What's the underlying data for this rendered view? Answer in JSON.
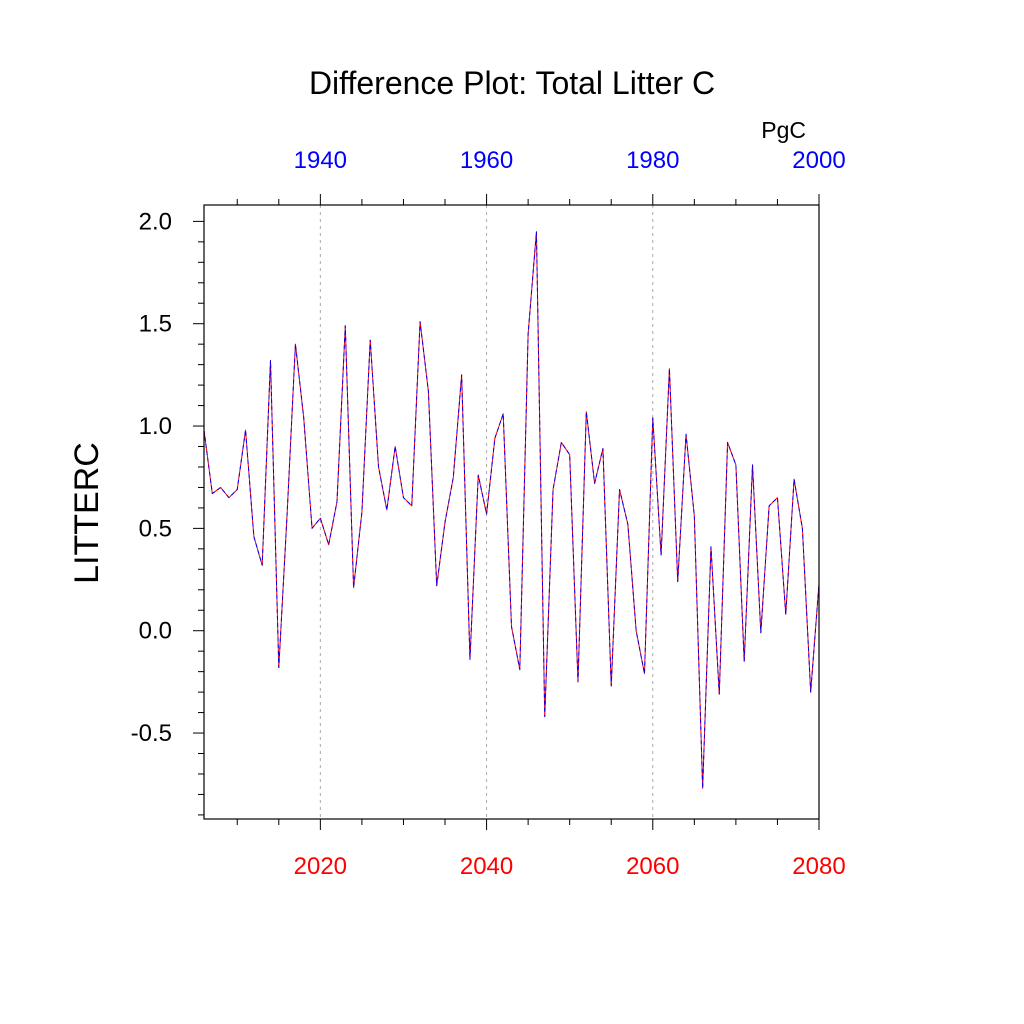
{
  "chart_data": {
    "type": "line",
    "title": "Difference Plot: Total Litter C",
    "units": "PgC",
    "ylabel": "LITTERC",
    "xlabel": "",
    "xlim": [
      2006,
      2080
    ],
    "ylim": [
      -0.92,
      2.08
    ],
    "grid": "vertical dashed lines at 2020, 2040, 2060",
    "colors": {
      "series_a": "#ff0000",
      "series_b": "#0000ff",
      "bottom_axis_text": "#ff0000",
      "top_axis_text": "#0000ff",
      "frame": "#000000"
    },
    "bottom_axis": {
      "ticks": [
        2020,
        2040,
        2060,
        2080
      ],
      "tick_labels": [
        "2020",
        "2040",
        "2060",
        "2080"
      ]
    },
    "top_axis": {
      "ticks": [
        1940,
        1960,
        1980,
        2000
      ],
      "tick_labels": [
        "1940",
        "1960",
        "1980",
        "2000"
      ],
      "offset_years": -80
    },
    "y_axis": {
      "ticks": [
        -0.5,
        0.0,
        0.5,
        1.0,
        1.5,
        2.0
      ],
      "tick_labels": [
        "-0.5",
        "0.0",
        "0.5",
        "1.0",
        "1.5",
        "2.0"
      ]
    },
    "x": [
      2006,
      2007,
      2008,
      2009,
      2010,
      2011,
      2012,
      2013,
      2014,
      2015,
      2016,
      2017,
      2018,
      2019,
      2020,
      2021,
      2022,
      2023,
      2024,
      2025,
      2026,
      2027,
      2028,
      2029,
      2030,
      2031,
      2032,
      2033,
      2034,
      2035,
      2036,
      2037,
      2038,
      2039,
      2040,
      2041,
      2042,
      2043,
      2044,
      2045,
      2046,
      2047,
      2048,
      2049,
      2050,
      2051,
      2052,
      2053,
      2054,
      2055,
      2056,
      2057,
      2058,
      2059,
      2060,
      2061,
      2062,
      2063,
      2064,
      2065,
      2066,
      2067,
      2068,
      2069,
      2070,
      2071,
      2072,
      2073,
      2074,
      2075,
      2076,
      2077,
      2078,
      2079,
      2080
    ],
    "series": [
      {
        "values": [
          0.98,
          0.67,
          0.7,
          0.65,
          0.69,
          0.98,
          0.46,
          0.32,
          1.32,
          -0.18,
          0.57,
          1.4,
          1.04,
          0.5,
          0.55,
          0.42,
          0.63,
          1.49,
          0.21,
          0.58,
          1.42,
          0.8,
          0.59,
          0.9,
          0.65,
          0.61,
          1.51,
          1.17,
          0.22,
          0.53,
          0.75,
          1.25,
          -0.14,
          0.76,
          0.57,
          0.94,
          1.06,
          0.02,
          -0.19,
          1.45,
          1.95,
          -0.42,
          0.69,
          0.92,
          0.86,
          -0.25,
          1.07,
          0.72,
          0.89,
          -0.27,
          0.69,
          0.52,
          0.0,
          -0.21,
          1.04,
          0.37,
          1.28,
          0.24,
          0.96,
          0.56,
          -0.77,
          0.41,
          -0.31,
          0.92,
          0.81,
          -0.15,
          0.81,
          -0.01,
          0.61,
          0.65,
          0.08,
          0.74,
          0.5,
          -0.3,
          0.23
        ]
      },
      {
        "values": [
          0.98,
          0.67,
          0.7,
          0.65,
          0.69,
          0.98,
          0.46,
          0.32,
          1.32,
          -0.18,
          0.57,
          1.4,
          1.04,
          0.5,
          0.55,
          0.42,
          0.63,
          1.49,
          0.21,
          0.58,
          1.42,
          0.8,
          0.59,
          0.9,
          0.65,
          0.61,
          1.51,
          1.17,
          0.22,
          0.53,
          0.75,
          1.25,
          -0.14,
          0.76,
          0.57,
          0.94,
          1.06,
          0.02,
          -0.19,
          1.45,
          1.95,
          -0.42,
          0.69,
          0.92,
          0.86,
          -0.25,
          1.07,
          0.72,
          0.89,
          -0.27,
          0.69,
          0.52,
          0.0,
          -0.21,
          1.04,
          0.37,
          1.28,
          0.24,
          0.96,
          0.56,
          -0.77,
          0.41,
          -0.31,
          0.92,
          0.81,
          -0.15,
          0.81,
          -0.01,
          0.61,
          0.65,
          0.08,
          0.74,
          0.5,
          -0.3,
          0.23
        ]
      }
    ]
  }
}
